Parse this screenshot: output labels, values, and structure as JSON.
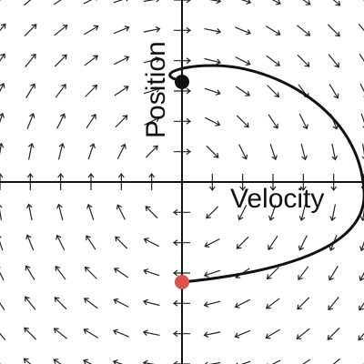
{
  "labels": {
    "x_axis": "Velocity",
    "y_axis": "Position"
  },
  "colors": {
    "background": "#ffffff",
    "axes": "#111111",
    "arrows": "#222222",
    "trajectory": "#111111",
    "start_marker": "#d9534f",
    "end_marker": "#111111"
  },
  "diagram": {
    "type": "phase-portrait",
    "grid_spacing_units": 1,
    "x_range": [
      -6,
      6
    ],
    "y_range": [
      -6,
      6
    ],
    "field": "dx/dt = y, dy/dt = -x",
    "trajectory": {
      "start": [
        0,
        -3.3
      ],
      "end": [
        0,
        3.3
      ],
      "direction": "counter-clockwise"
    },
    "markers": [
      {
        "name": "start",
        "at": [
          0,
          -3.3
        ],
        "color_key": "start_marker"
      },
      {
        "name": "end",
        "at": [
          0,
          3.3
        ],
        "color_key": "end_marker"
      }
    ]
  }
}
